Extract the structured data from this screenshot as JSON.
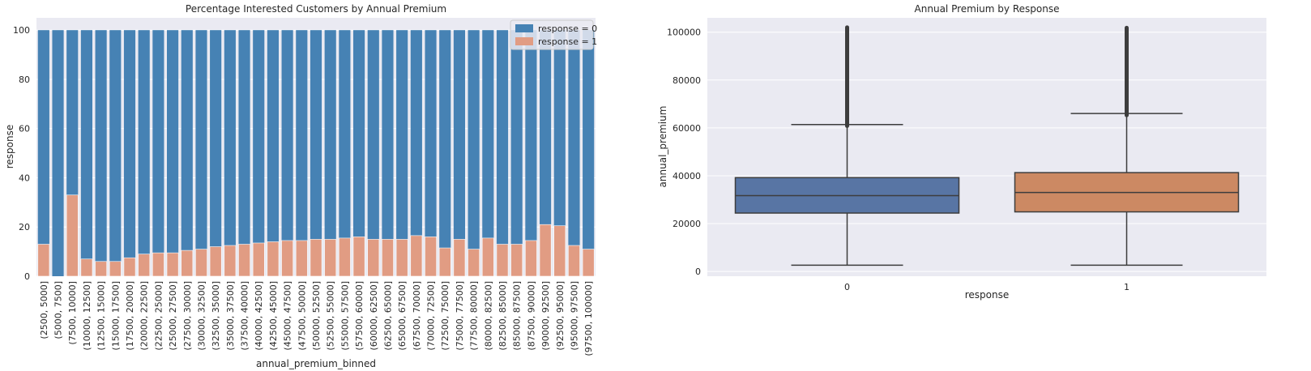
{
  "chart_data": [
    {
      "type": "bar",
      "stacking": "overlay",
      "title": "Percentage Interested Customers by Annual Premium",
      "xlabel": "annual_premium_binned",
      "ylabel": "response",
      "ylim": [
        0,
        105
      ],
      "yticks": [
        0,
        20,
        40,
        60,
        80,
        100
      ],
      "grid": true,
      "legend_position": "top-right",
      "categories": [
        "(2500, 5000]",
        "(5000, 7500]",
        "(7500, 10000]",
        "(10000, 12500]",
        "(12500, 15000]",
        "(15000, 17500]",
        "(17500, 20000]",
        "(20000, 22500]",
        "(22500, 25000]",
        "(25000, 27500]",
        "(27500, 30000]",
        "(30000, 32500]",
        "(32500, 35000]",
        "(35000, 37500]",
        "(37500, 40000]",
        "(40000, 42500]",
        "(42500, 45000]",
        "(45000, 47500]",
        "(47500, 50000]",
        "(50000, 52500]",
        "(52500, 55000]",
        "(55000, 57500]",
        "(57500, 60000]",
        "(60000, 62500]",
        "(62500, 65000]",
        "(65000, 67500]",
        "(67500, 70000]",
        "(70000, 72500]",
        "(72500, 75000]",
        "(75000, 77500]",
        "(77500, 80000]",
        "(80000, 82500]",
        "(82500, 85000]",
        "(85000, 87500]",
        "(87500, 90000]",
        "(90000, 92500]",
        "(92500, 95000]",
        "(95000, 97500]",
        "(97500, 100000]"
      ],
      "series": [
        {
          "name": "response = 0",
          "color": "#4682b4",
          "values": [
            100,
            100,
            100,
            100,
            100,
            100,
            100,
            100,
            100,
            100,
            100,
            100,
            100,
            100,
            100,
            100,
            100,
            100,
            100,
            100,
            100,
            100,
            100,
            100,
            100,
            100,
            100,
            100,
            100,
            100,
            100,
            100,
            100,
            100,
            100,
            100,
            100,
            100,
            100
          ]
        },
        {
          "name": "response = 1",
          "color": "#e19c83",
          "values": [
            13,
            0,
            33,
            7,
            6,
            6,
            7.5,
            9,
            9.5,
            9.5,
            10.5,
            11,
            12,
            12.5,
            13,
            13.5,
            14,
            14.5,
            14.5,
            15,
            15,
            15.5,
            16,
            15,
            15,
            15,
            16.5,
            16,
            11.5,
            15,
            11,
            15.5,
            13,
            13,
            14.5,
            21,
            20.5,
            12.5,
            11
          ]
        }
      ]
    },
    {
      "type": "box",
      "title": "Annual Premium by Response",
      "xlabel": "response",
      "ylabel": "annual_premium",
      "ylim": [
        -2000,
        106000
      ],
      "yticks": [
        0,
        20000,
        40000,
        60000,
        80000,
        100000
      ],
      "grid": true,
      "categories": [
        "0",
        "1"
      ],
      "boxes": [
        {
          "category": "0",
          "color": "#5875a4",
          "whisker_low": 2630,
          "q1": 24400,
          "median": 31700,
          "q3": 39200,
          "whisker_high": 61400,
          "outlier_min": 60800,
          "outlier_max": 102000
        },
        {
          "category": "1",
          "color": "#cc8963",
          "whisker_low": 2630,
          "q1": 24900,
          "median": 33000,
          "q3": 41300,
          "whisker_high": 66000,
          "outlier_min": 65300,
          "outlier_max": 101800
        }
      ]
    }
  ]
}
